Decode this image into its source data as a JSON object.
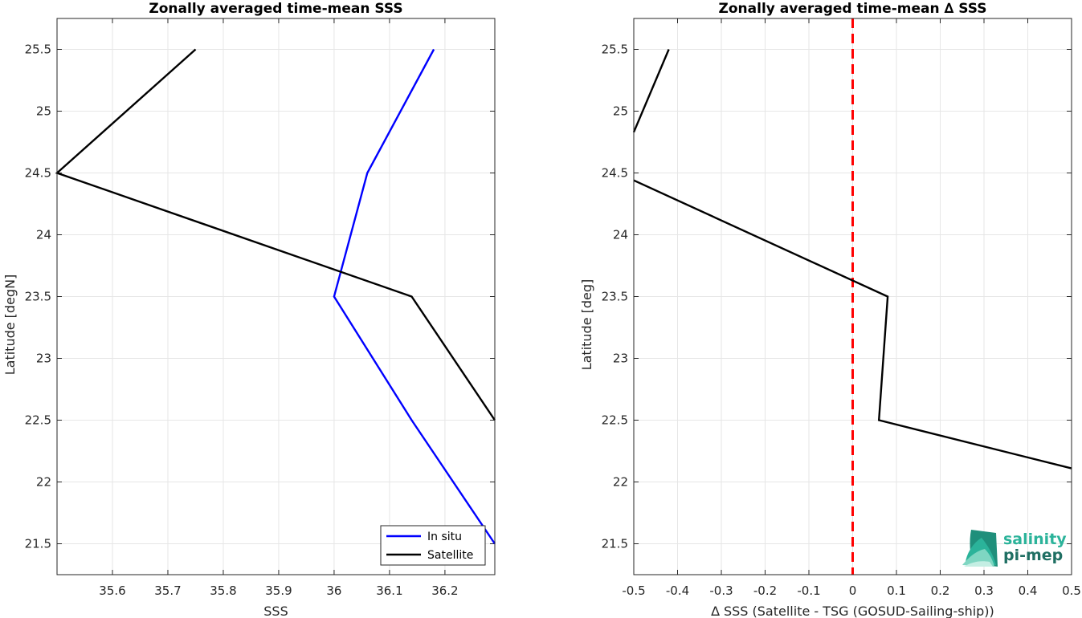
{
  "chart_data": [
    {
      "type": "line",
      "title": "Zonally averaged time-mean SSS",
      "xlabel": "SSS",
      "ylabel": "Latitude [degN]",
      "xlim": [
        35.5,
        36.29
      ],
      "ylim": [
        21.25,
        25.75
      ],
      "xticks": [
        "35.6",
        "35.7",
        "35.8",
        "35.9",
        "36",
        "36.1",
        "36.2"
      ],
      "yticks": [
        "21.5",
        "22",
        "22.5",
        "23",
        "23.5",
        "24",
        "24.5",
        "25",
        "25.5"
      ],
      "grid": true,
      "legend_position": "bottom-right",
      "series": [
        {
          "name": "In situ",
          "color": "#0000ff",
          "points": [
            [
              36.18,
              25.5
            ],
            [
              36.06,
              24.5
            ],
            [
              36.0,
              23.5
            ],
            [
              36.14,
              22.5
            ],
            [
              36.29,
              21.5
            ]
          ]
        },
        {
          "name": "Satellite",
          "color": "#000000",
          "points": [
            [
              35.75,
              25.5
            ],
            [
              35.5,
              24.5
            ],
            [
              36.14,
              23.5
            ],
            [
              36.29,
              22.5
            ]
          ]
        }
      ]
    },
    {
      "type": "line",
      "title": "Zonally averaged time-mean ∆ SSS",
      "xlabel": "∆ SSS (Satellite - TSG (GOSUD-Sailing-ship))",
      "ylabel": "Latitude [deg]",
      "xlim": [
        -0.5,
        0.5
      ],
      "ylim": [
        21.25,
        25.75
      ],
      "xticks": [
        "-0.5",
        "-0.4",
        "-0.3",
        "-0.2",
        "-0.1",
        "0",
        "0.1",
        "0.2",
        "0.3",
        "0.4",
        "0.5"
      ],
      "yticks": [
        "21.5",
        "22",
        "22.5",
        "23",
        "23.5",
        "24",
        "24.5",
        "25",
        "25.5"
      ],
      "grid": true,
      "reference_line": {
        "x": 0,
        "color": "#ff0000",
        "style": "dashed"
      },
      "series": [
        {
          "color": "#000000",
          "points": [
            [
              -0.42,
              25.5
            ],
            [
              -0.5,
              24.83
            ]
          ]
        },
        {
          "color": "#000000",
          "points": [
            [
              -0.5,
              24.44
            ],
            [
              0.08,
              23.5
            ],
            [
              0.06,
              22.5
            ],
            [
              0.5,
              22.11
            ]
          ]
        }
      ]
    }
  ],
  "logo": {
    "line1": "salinity",
    "line2": "pi-mep"
  },
  "colors": {
    "grid": "#e6e6e6",
    "axis": "#262626",
    "logo_light": "#2bb39a",
    "logo_dark": "#1f6f63"
  }
}
